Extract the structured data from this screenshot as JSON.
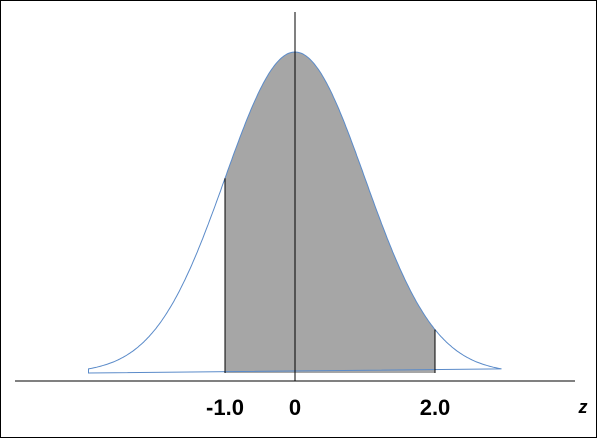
{
  "chart_data": {
    "type": "normal-curve",
    "x_label": "z",
    "xlim": [
      -4,
      4
    ],
    "xticks": [
      {
        "value": -1,
        "label": "-1.0"
      },
      0,
      {
        "value": 2,
        "label": "2.0"
      }
    ],
    "shaded_range": [
      -1,
      2
    ],
    "curve_color": "#5b8bc9",
    "shade_color": "#a6a6a6"
  }
}
